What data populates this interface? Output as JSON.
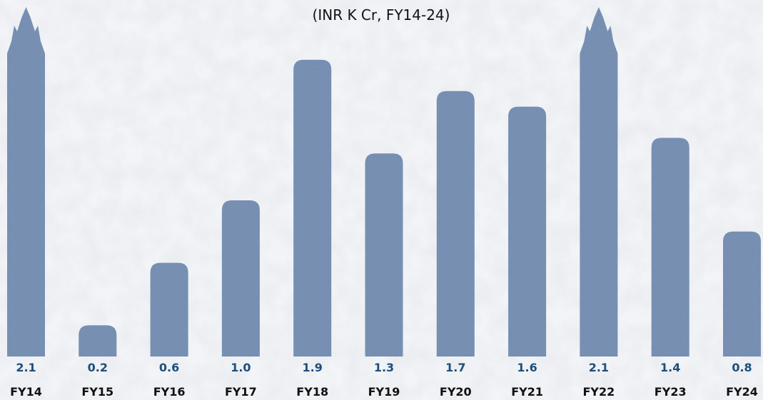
{
  "chart_data": {
    "type": "bar",
    "subtitle": "(INR K Cr, FY14-24)",
    "categories": [
      "FY14",
      "FY15",
      "FY16",
      "FY17",
      "FY18",
      "FY19",
      "FY20",
      "FY21",
      "FY22",
      "FY23",
      "FY24"
    ],
    "values": [
      2.1,
      0.2,
      0.6,
      1.0,
      1.9,
      1.3,
      1.7,
      1.6,
      2.1,
      1.4,
      0.8
    ],
    "value_labels": [
      "2.1",
      "0.2",
      "0.6",
      "1.0",
      "1.9",
      "1.3",
      "1.7",
      "1.6",
      "2.1",
      "1.4",
      "0.8"
    ],
    "ylim": [
      0,
      2.0
    ],
    "grid": false,
    "legend": "none",
    "bar_color": "#6f8bb0",
    "value_label_color": "#1f4e79",
    "category_label_color": "#111111",
    "background": "#eef0f3"
  }
}
